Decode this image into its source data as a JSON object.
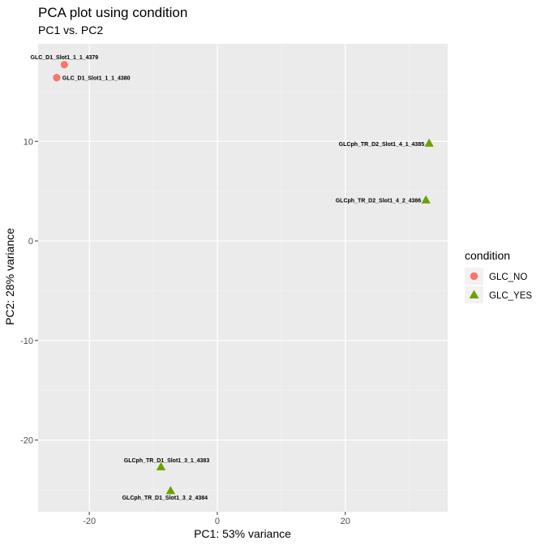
{
  "chart_data": {
    "type": "scatter",
    "title": "PCA plot using condition",
    "subtitle": "PC1 vs. PC2",
    "xlabel": "PC1: 53% variance",
    "ylabel": "PC2: 28% variance",
    "xlim": [
      -28,
      36
    ],
    "ylim": [
      -27.2,
      19.8
    ],
    "xticks": [
      -20,
      0,
      20
    ],
    "yticks": [
      -20,
      -10,
      0,
      10
    ],
    "grid": true,
    "legend": {
      "title": "condition",
      "placement": "right",
      "entries": [
        {
          "name": "GLC_NO",
          "shape": "circle",
          "color": "#F8766D"
        },
        {
          "name": "GLC_YES",
          "shape": "triangle",
          "color": "#6AA300"
        }
      ]
    },
    "series": [
      {
        "name": "GLC_NO",
        "shape": "circle",
        "color": "#F8766D",
        "points": [
          {
            "label": "GLC_D1_Slot1_1_1_4379",
            "x": -23.9,
            "y": 17.7
          },
          {
            "label": "GLC_D1_Slot1_1_1_4380",
            "x": -25.1,
            "y": 16.4
          }
        ]
      },
      {
        "name": "GLC_YES",
        "shape": "triangle",
        "color": "#6AA300",
        "points": [
          {
            "label": "GLCph_TR_D2_Slot1_4_1_4385",
            "x": 33.1,
            "y": 9.8
          },
          {
            "label": "GLCph_TR_D2_Slot1_4_2_4386",
            "x": 32.6,
            "y": 4.1
          },
          {
            "label": "GLCph_TR_D1_Slot1_3_1_4383",
            "x": -8.8,
            "y": -22.7
          },
          {
            "label": "GLCph_TR_D1_Slot1_3_2_4384",
            "x": -7.3,
            "y": -25.1
          }
        ]
      }
    ]
  }
}
